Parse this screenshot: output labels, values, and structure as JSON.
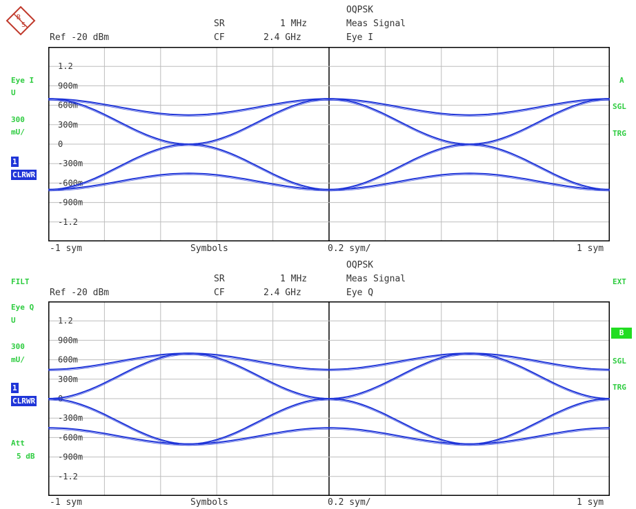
{
  "logo": {
    "text": "R&S"
  },
  "top": {
    "header": {
      "standard": "OQPSK",
      "sr_label": "SR",
      "sr_value": "1 MHz",
      "cf_label": "CF",
      "cf_value": "2.4 GHz",
      "meas": "Meas Signal",
      "eye": "Eye I",
      "ref": "Ref -20 dBm"
    },
    "left": {
      "trace": "Eye I",
      "unit": "U",
      "scale": "300",
      "scale_unit": "mU/",
      "num": "1",
      "mode": "CLRWR"
    },
    "right": {
      "a": "A",
      "sgl": "SGL",
      "trg": "TRG"
    },
    "yticks": [
      "1.2",
      "900m",
      "600m",
      "300m",
      "0",
      "-300m",
      "-600m",
      "-900m",
      "-1.2"
    ],
    "footer": {
      "start": "-1 sym",
      "mid": "Symbols",
      "div": "0.2 sym/",
      "stop": "1 sym"
    }
  },
  "bottom": {
    "header": {
      "filt": "FILT",
      "ext": "EXT",
      "standard": "OQPSK",
      "sr_label": "SR",
      "sr_value": "1 MHz",
      "cf_label": "CF",
      "cf_value": "2.4 GHz",
      "meas": "Meas Signal",
      "eye": "Eye Q",
      "ref": "Ref -20 dBm"
    },
    "left": {
      "trace": "Eye Q",
      "unit": "U",
      "scale": "300",
      "scale_unit": "mU/",
      "num": "1",
      "mode": "CLRWR",
      "att": "Att",
      "att_value": "5 dB"
    },
    "right": {
      "b": "B",
      "sgl": "SGL",
      "trg": "TRG"
    },
    "yticks": [
      "1.2",
      "900m",
      "600m",
      "300m",
      "0",
      "-300m",
      "-600m",
      "-900m",
      "-1.2"
    ],
    "footer": {
      "start": "-1 sym",
      "mid": "Symbols",
      "div": "0.2 sym/",
      "stop": "1 sym"
    }
  },
  "colors": {
    "trace": "#1f35d8",
    "grid": "#bdbdbd",
    "frame": "#000000",
    "annot": "#2ecc40"
  },
  "chart_data": [
    {
      "type": "line",
      "title": "Eye I",
      "xlim": [
        -1,
        1
      ],
      "ylim": [
        -1.5,
        1.5
      ],
      "grid": true,
      "series": [
        {
          "x": [
            -1,
            -0.5,
            0,
            0.5,
            1
          ],
          "values": [
            0.7,
            0.45,
            0.7,
            0.45,
            0.7
          ]
        },
        {
          "x": [
            -1,
            -0.5,
            0,
            0.5,
            1
          ],
          "values": [
            0.7,
            0,
            -0.7,
            0,
            0.7
          ]
        },
        {
          "x": [
            -1,
            -0.5,
            0,
            0.5,
            1
          ],
          "values": [
            -0.7,
            0,
            0.7,
            0,
            -0.7
          ]
        },
        {
          "x": [
            -1,
            -0.5,
            0,
            0.5,
            1
          ],
          "values": [
            -0.7,
            -0.45,
            -0.7,
            -0.45,
            -0.7
          ]
        }
      ]
    },
    {
      "type": "line",
      "title": "Eye Q",
      "xlim": [
        -1,
        1
      ],
      "ylim": [
        -1.5,
        1.5
      ],
      "grid": true,
      "series": [
        {
          "x": [
            -1,
            -0.5,
            0,
            0.5,
            1
          ],
          "values": [
            0.45,
            0.7,
            0.45,
            0.7,
            0.45
          ]
        },
        {
          "x": [
            -1,
            -0.5,
            0,
            0.5,
            1
          ],
          "values": [
            0,
            0.7,
            0,
            -0.7,
            0
          ]
        },
        {
          "x": [
            -1,
            -0.5,
            0,
            0.5,
            1
          ],
          "values": [
            0,
            -0.7,
            0,
            0.7,
            0
          ]
        },
        {
          "x": [
            -1,
            -0.5,
            0,
            0.5,
            1
          ],
          "values": [
            -0.45,
            -0.7,
            -0.45,
            -0.7,
            -0.45
          ]
        }
      ]
    }
  ]
}
